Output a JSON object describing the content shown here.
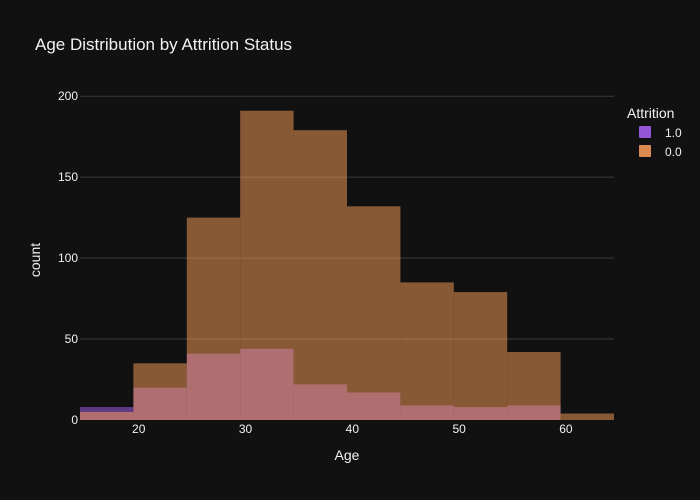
{
  "chart_data": {
    "type": "bar",
    "title": "Age Distribution by Attrition Status",
    "xlabel": "Age",
    "ylabel": "count",
    "xlim": [
      14.5,
      64.5
    ],
    "ylim": [
      0,
      210
    ],
    "xticks": [
      20,
      30,
      40,
      50,
      60
    ],
    "yticks": [
      0,
      50,
      100,
      150,
      200
    ],
    "grid": true,
    "barmode": "overlay",
    "bin_width": 5,
    "bin_starts": [
      14.5,
      19.5,
      24.5,
      29.5,
      34.5,
      39.5,
      44.5,
      49.5,
      54.5,
      59.5
    ],
    "legend": {
      "title": "Attrition",
      "position": "top-right"
    },
    "series": [
      {
        "name": "1.0",
        "color": "#ab63fa",
        "values": [
          8,
          20,
          41,
          44,
          22,
          17,
          9,
          8,
          9,
          0
        ]
      },
      {
        "name": "0.0",
        "color": "#FFA15A",
        "values": [
          5,
          35,
          125,
          191,
          179,
          132,
          85,
          79,
          42,
          4
        ]
      }
    ]
  }
}
